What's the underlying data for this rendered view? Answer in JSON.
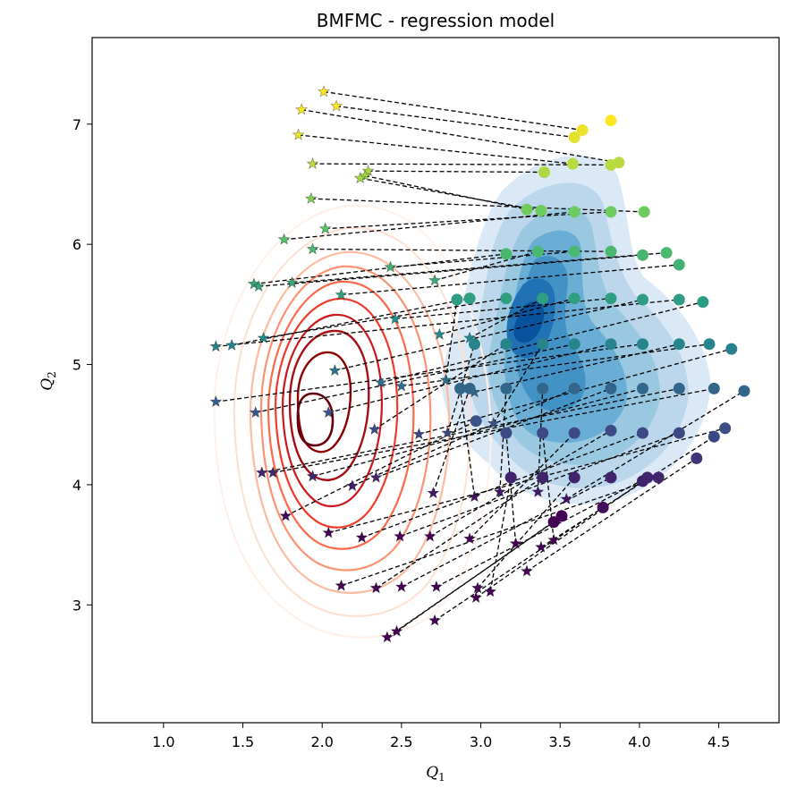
{
  "chart_data": {
    "type": "scatter",
    "title": "BMFMC - regression model",
    "xlabel": "Q",
    "xlabel_sub": "1",
    "ylabel": "Q",
    "ylabel_sub": "2",
    "xlim": [
      0.55,
      4.88
    ],
    "ylim": [
      2.02,
      7.72
    ],
    "xticks": [
      "1.0",
      "1.5",
      "2.0",
      "2.5",
      "3.0",
      "3.5",
      "4.0",
      "4.5"
    ],
    "yticks": [
      "3",
      "4",
      "5",
      "6",
      "7"
    ],
    "grid": false,
    "legend": "none",
    "colormap": "viridis",
    "series": [
      {
        "marker": "star",
        "points": [
          [
            2.01,
            7.27
          ],
          [
            2.09,
            7.15
          ],
          [
            1.87,
            7.12
          ],
          [
            1.85,
            6.91
          ],
          [
            1.94,
            6.67
          ],
          [
            2.29,
            6.61
          ],
          [
            2.27,
            6.57
          ],
          [
            2.24,
            6.55
          ],
          [
            1.93,
            6.38
          ],
          [
            2.02,
            6.13
          ],
          [
            1.76,
            6.04
          ],
          [
            1.94,
            5.96
          ],
          [
            1.57,
            5.67
          ],
          [
            1.6,
            5.65
          ],
          [
            1.81,
            5.68
          ],
          [
            2.43,
            5.81
          ],
          [
            2.71,
            5.7
          ],
          [
            2.12,
            5.58
          ],
          [
            2.46,
            5.38
          ],
          [
            1.33,
            5.15
          ],
          [
            1.43,
            5.16
          ],
          [
            1.63,
            5.22
          ],
          [
            2.74,
            5.25
          ],
          [
            2.93,
            5.22
          ],
          [
            2.08,
            4.95
          ],
          [
            1.33,
            4.69
          ],
          [
            1.58,
            4.6
          ],
          [
            2.04,
            4.6
          ],
          [
            2.37,
            4.85
          ],
          [
            2.78,
            4.87
          ],
          [
            2.5,
            4.82
          ],
          [
            2.96,
            4.77
          ],
          [
            2.61,
            4.42
          ],
          [
            2.33,
            4.46
          ],
          [
            2.79,
            4.43
          ],
          [
            3.08,
            4.51
          ],
          [
            1.62,
            4.1
          ],
          [
            1.69,
            4.1
          ],
          [
            1.94,
            4.07
          ],
          [
            2.34,
            4.06
          ],
          [
            2.19,
            3.99
          ],
          [
            2.7,
            3.93
          ],
          [
            2.96,
            3.9
          ],
          [
            3.12,
            3.94
          ],
          [
            3.36,
            3.94
          ],
          [
            3.54,
            3.88
          ],
          [
            1.77,
            3.74
          ],
          [
            2.04,
            3.6
          ],
          [
            2.25,
            3.56
          ],
          [
            2.49,
            3.57
          ],
          [
            2.68,
            3.57
          ],
          [
            2.93,
            3.55
          ],
          [
            3.22,
            3.51
          ],
          [
            3.38,
            3.48
          ],
          [
            3.46,
            3.54
          ],
          [
            2.12,
            3.16
          ],
          [
            2.34,
            3.14
          ],
          [
            2.5,
            3.15
          ],
          [
            2.72,
            3.15
          ],
          [
            2.98,
            3.14
          ],
          [
            2.97,
            3.06
          ],
          [
            3.06,
            3.11
          ],
          [
            3.29,
            3.28
          ],
          [
            2.71,
            2.87
          ],
          [
            2.47,
            2.78
          ],
          [
            2.41,
            2.73
          ]
        ]
      },
      {
        "marker": "circle",
        "points": [
          [
            3.82,
            7.03
          ],
          [
            3.64,
            6.95
          ],
          [
            3.59,
            6.89
          ],
          [
            3.82,
            6.66
          ],
          [
            3.87,
            6.68
          ],
          [
            3.58,
            6.67
          ],
          [
            3.4,
            6.6
          ],
          [
            3.29,
            6.29
          ],
          [
            3.38,
            6.28
          ],
          [
            3.59,
            6.27
          ],
          [
            3.82,
            6.27
          ],
          [
            4.03,
            6.27
          ],
          [
            3.16,
            5.92
          ],
          [
            3.36,
            5.94
          ],
          [
            3.59,
            5.94
          ],
          [
            3.82,
            5.94
          ],
          [
            4.02,
            5.91
          ],
          [
            4.17,
            5.93
          ],
          [
            4.25,
            5.83
          ],
          [
            2.85,
            5.54
          ],
          [
            2.93,
            5.55
          ],
          [
            3.16,
            5.55
          ],
          [
            3.39,
            5.55
          ],
          [
            3.59,
            5.55
          ],
          [
            3.82,
            5.55
          ],
          [
            4.02,
            5.54
          ],
          [
            4.25,
            5.54
          ],
          [
            4.4,
            5.52
          ],
          [
            2.96,
            5.17
          ],
          [
            3.16,
            5.17
          ],
          [
            3.39,
            5.17
          ],
          [
            3.59,
            5.17
          ],
          [
            3.82,
            5.17
          ],
          [
            4.02,
            5.17
          ],
          [
            4.25,
            5.17
          ],
          [
            4.44,
            5.17
          ],
          [
            4.58,
            5.13
          ],
          [
            2.87,
            4.8
          ],
          [
            2.93,
            4.8
          ],
          [
            3.16,
            4.8
          ],
          [
            3.39,
            4.8
          ],
          [
            3.59,
            4.8
          ],
          [
            3.82,
            4.8
          ],
          [
            4.02,
            4.8
          ],
          [
            4.25,
            4.8
          ],
          [
            4.47,
            4.8
          ],
          [
            4.66,
            4.78
          ],
          [
            2.97,
            4.53
          ],
          [
            3.16,
            4.43
          ],
          [
            3.39,
            4.43
          ],
          [
            3.59,
            4.43
          ],
          [
            3.82,
            4.45
          ],
          [
            4.02,
            4.43
          ],
          [
            4.25,
            4.43
          ],
          [
            4.47,
            4.4
          ],
          [
            4.54,
            4.47
          ],
          [
            3.19,
            4.06
          ],
          [
            3.39,
            4.06
          ],
          [
            3.59,
            4.06
          ],
          [
            3.82,
            4.06
          ],
          [
            4.02,
            4.03
          ],
          [
            4.05,
            4.06
          ],
          [
            4.12,
            4.06
          ],
          [
            4.36,
            4.22
          ],
          [
            3.77,
            3.81
          ],
          [
            3.51,
            3.74
          ],
          [
            3.46,
            3.69
          ]
        ]
      }
    ]
  }
}
